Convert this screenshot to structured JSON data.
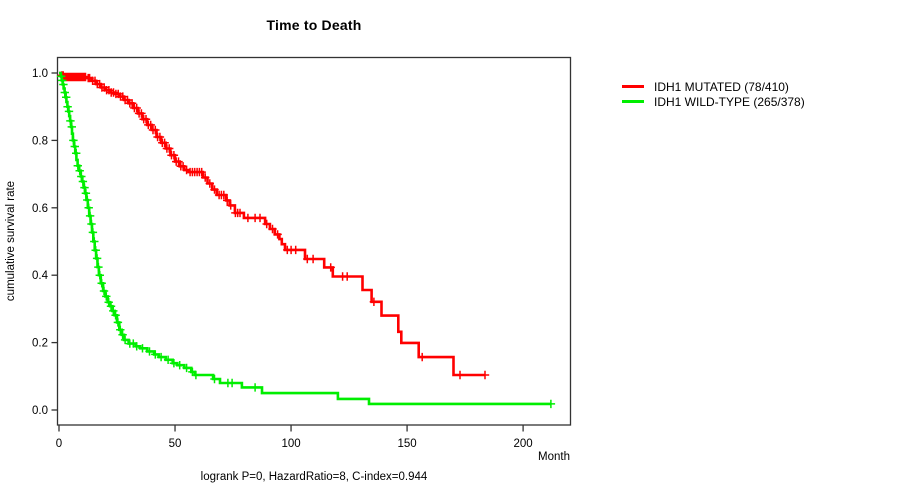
{
  "title": "Time to Death",
  "caption": "logrank P=0, HazardRatio=8, C-index=0.944",
  "x_axis": {
    "label": "Month",
    "ticks": [
      0,
      50,
      100,
      150,
      200
    ],
    "range": [
      0,
      220
    ]
  },
  "y_axis": {
    "label": "cumulative survival rate",
    "ticks": [
      "0.0",
      "0.2",
      "0.4",
      "0.6",
      "0.8",
      "1.0"
    ],
    "range": [
      0,
      1
    ]
  },
  "legend": {
    "items": [
      {
        "label": "IDH1 MUTATED (78/410)",
        "color": "#ff0000"
      },
      {
        "label": "IDH1 WILD-TYPE (265/378)",
        "color": "#00ee00"
      }
    ]
  },
  "chart_data": {
    "type": "line",
    "subtype": "kaplan-meier-step",
    "title": "Time to Death",
    "xlabel": "Month",
    "ylabel": "cumulative survival rate",
    "xlim": [
      0,
      220
    ],
    "ylim": [
      0,
      1
    ],
    "grid": false,
    "legend_position": "right-outside",
    "series": [
      {
        "id": "idh1-mutated",
        "name": "IDH1 MUTATED (78/410)",
        "color": "#ff0000",
        "events": 78,
        "total": 410,
        "end_month": 183.6,
        "steps": [
          [
            0,
            1.0
          ],
          [
            0.7,
            0.993
          ],
          [
            2,
            0.988
          ],
          [
            12,
            0.985
          ],
          [
            14,
            0.977
          ],
          [
            16,
            0.967
          ],
          [
            18,
            0.957
          ],
          [
            20,
            0.949
          ],
          [
            22,
            0.942
          ],
          [
            24,
            0.938
          ],
          [
            26,
            0.93
          ],
          [
            28,
            0.92
          ],
          [
            30,
            0.91
          ],
          [
            32,
            0.896
          ],
          [
            34,
            0.88
          ],
          [
            36,
            0.863
          ],
          [
            38,
            0.846
          ],
          [
            40,
            0.831
          ],
          [
            42,
            0.81
          ],
          [
            44,
            0.793
          ],
          [
            46,
            0.776
          ],
          [
            48,
            0.756
          ],
          [
            50,
            0.737
          ],
          [
            52,
            0.723
          ],
          [
            54,
            0.712
          ],
          [
            56,
            0.706
          ],
          [
            62,
            0.69
          ],
          [
            64,
            0.672
          ],
          [
            66,
            0.654
          ],
          [
            68,
            0.638
          ],
          [
            72,
            0.622
          ],
          [
            73.5,
            0.607
          ],
          [
            75.8,
            0.585
          ],
          [
            79.7,
            0.57
          ],
          [
            88.8,
            0.552
          ],
          [
            90.9,
            0.537
          ],
          [
            93,
            0.521
          ],
          [
            95,
            0.507
          ],
          [
            96,
            0.492
          ],
          [
            97.4,
            0.475
          ],
          [
            106,
            0.448
          ],
          [
            114.3,
            0.423
          ],
          [
            118,
            0.396
          ],
          [
            130.8,
            0.356
          ],
          [
            134.7,
            0.321
          ],
          [
            139,
            0.28
          ],
          [
            146.2,
            0.232
          ],
          [
            147.5,
            0.199
          ],
          [
            155,
            0.157
          ],
          [
            170,
            0.104
          ]
        ],
        "censor_months": [
          1.2,
          1.8,
          2.4,
          3,
          3.6,
          4.2,
          4.8,
          5.4,
          6,
          6.6,
          7.2,
          7.8,
          8.4,
          9,
          9.6,
          10.2,
          10.8,
          11.4,
          12.6,
          13.2,
          14.5,
          15.5,
          16.5,
          17.5,
          18.5,
          19.5,
          20.5,
          21.5,
          22.5,
          23.5,
          24.5,
          25.5,
          26.5,
          27.5,
          28.5,
          29.5,
          30.5,
          31.5,
          32.5,
          33.5,
          34.5,
          35.5,
          36.5,
          37.5,
          38.5,
          39.5,
          40.5,
          41.5,
          42.5,
          43.5,
          44.5,
          45.5,
          46.5,
          47.5,
          48.5,
          49.5,
          50.5,
          51.5,
          52.5,
          53.5,
          55,
          56.5,
          57.5,
          58.5,
          59.5,
          60.5,
          61.5,
          63,
          65,
          67,
          69,
          70,
          71,
          72.5,
          74,
          76,
          77,
          78,
          81.4,
          84.5,
          86.6,
          89.5,
          92,
          94.2,
          98.4,
          100,
          102,
          107,
          109.5,
          117.1,
          122.2,
          124.2,
          135.7,
          156.5,
          172.8,
          183.6
        ]
      },
      {
        "id": "idh1-wild-type",
        "name": "IDH1 WILD-TYPE (265/378)",
        "color": "#00ee00",
        "events": 265,
        "total": 378,
        "end_month": 212,
        "steps": [
          [
            0,
            1.0
          ],
          [
            0.8,
            0.99
          ],
          [
            1.2,
            0.978
          ],
          [
            1.6,
            0.966
          ],
          [
            2,
            0.954
          ],
          [
            2.4,
            0.942
          ],
          [
            2.8,
            0.928
          ],
          [
            3.2,
            0.914
          ],
          [
            3.6,
            0.9
          ],
          [
            4,
            0.886
          ],
          [
            4.4,
            0.872
          ],
          [
            4.8,
            0.858
          ],
          [
            5.2,
            0.84
          ],
          [
            5.6,
            0.82
          ],
          [
            6,
            0.8
          ],
          [
            6.5,
            0.782
          ],
          [
            7,
            0.762
          ],
          [
            7.5,
            0.742
          ],
          [
            8,
            0.725
          ],
          [
            8.7,
            0.71
          ],
          [
            9.4,
            0.693
          ],
          [
            10,
            0.678
          ],
          [
            10.6,
            0.66
          ],
          [
            11.2,
            0.643
          ],
          [
            11.8,
            0.623
          ],
          [
            12.4,
            0.6
          ],
          [
            13,
            0.576
          ],
          [
            13.6,
            0.552
          ],
          [
            14.2,
            0.527
          ],
          [
            14.8,
            0.5
          ],
          [
            15.4,
            0.474
          ],
          [
            16,
            0.45
          ],
          [
            16.6,
            0.424
          ],
          [
            17.2,
            0.4
          ],
          [
            18,
            0.376
          ],
          [
            19,
            0.353
          ],
          [
            20,
            0.337
          ],
          [
            21,
            0.32
          ],
          [
            22,
            0.308
          ],
          [
            23,
            0.294
          ],
          [
            24,
            0.281
          ],
          [
            25,
            0.26
          ],
          [
            26,
            0.238
          ],
          [
            27,
            0.223
          ],
          [
            28,
            0.208
          ],
          [
            30,
            0.197
          ],
          [
            33,
            0.189
          ],
          [
            35,
            0.183
          ],
          [
            38,
            0.174
          ],
          [
            41,
            0.165
          ],
          [
            43,
            0.157
          ],
          [
            46,
            0.149
          ],
          [
            49,
            0.139
          ],
          [
            51,
            0.133
          ],
          [
            54,
            0.125
          ],
          [
            57,
            0.113
          ],
          [
            58.5,
            0.104
          ],
          [
            66.4,
            0.092
          ],
          [
            69.4,
            0.08
          ],
          [
            78.8,
            0.067
          ],
          [
            87.5,
            0.05
          ],
          [
            120.2,
            0.033
          ],
          [
            133.6,
            0.018
          ]
        ],
        "censor_months": [
          0.9,
          1.4,
          1.9,
          2.5,
          3.1,
          3.7,
          4.3,
          4.9,
          5.5,
          6.2,
          6.8,
          7.4,
          8.1,
          8.9,
          9.6,
          10.3,
          11,
          11.6,
          12.2,
          12.8,
          13.4,
          14,
          14.6,
          15.2,
          15.8,
          16.4,
          17,
          17.6,
          18.4,
          19.4,
          20.4,
          21.4,
          22.4,
          23.4,
          24.4,
          25.4,
          26.4,
          27.4,
          28.5,
          30.5,
          32,
          33.5,
          36,
          39,
          41.5,
          44,
          47,
          49.5,
          52,
          55,
          57.5,
          59,
          67,
          72.8,
          74.6,
          84.5,
          212
        ]
      }
    ]
  }
}
